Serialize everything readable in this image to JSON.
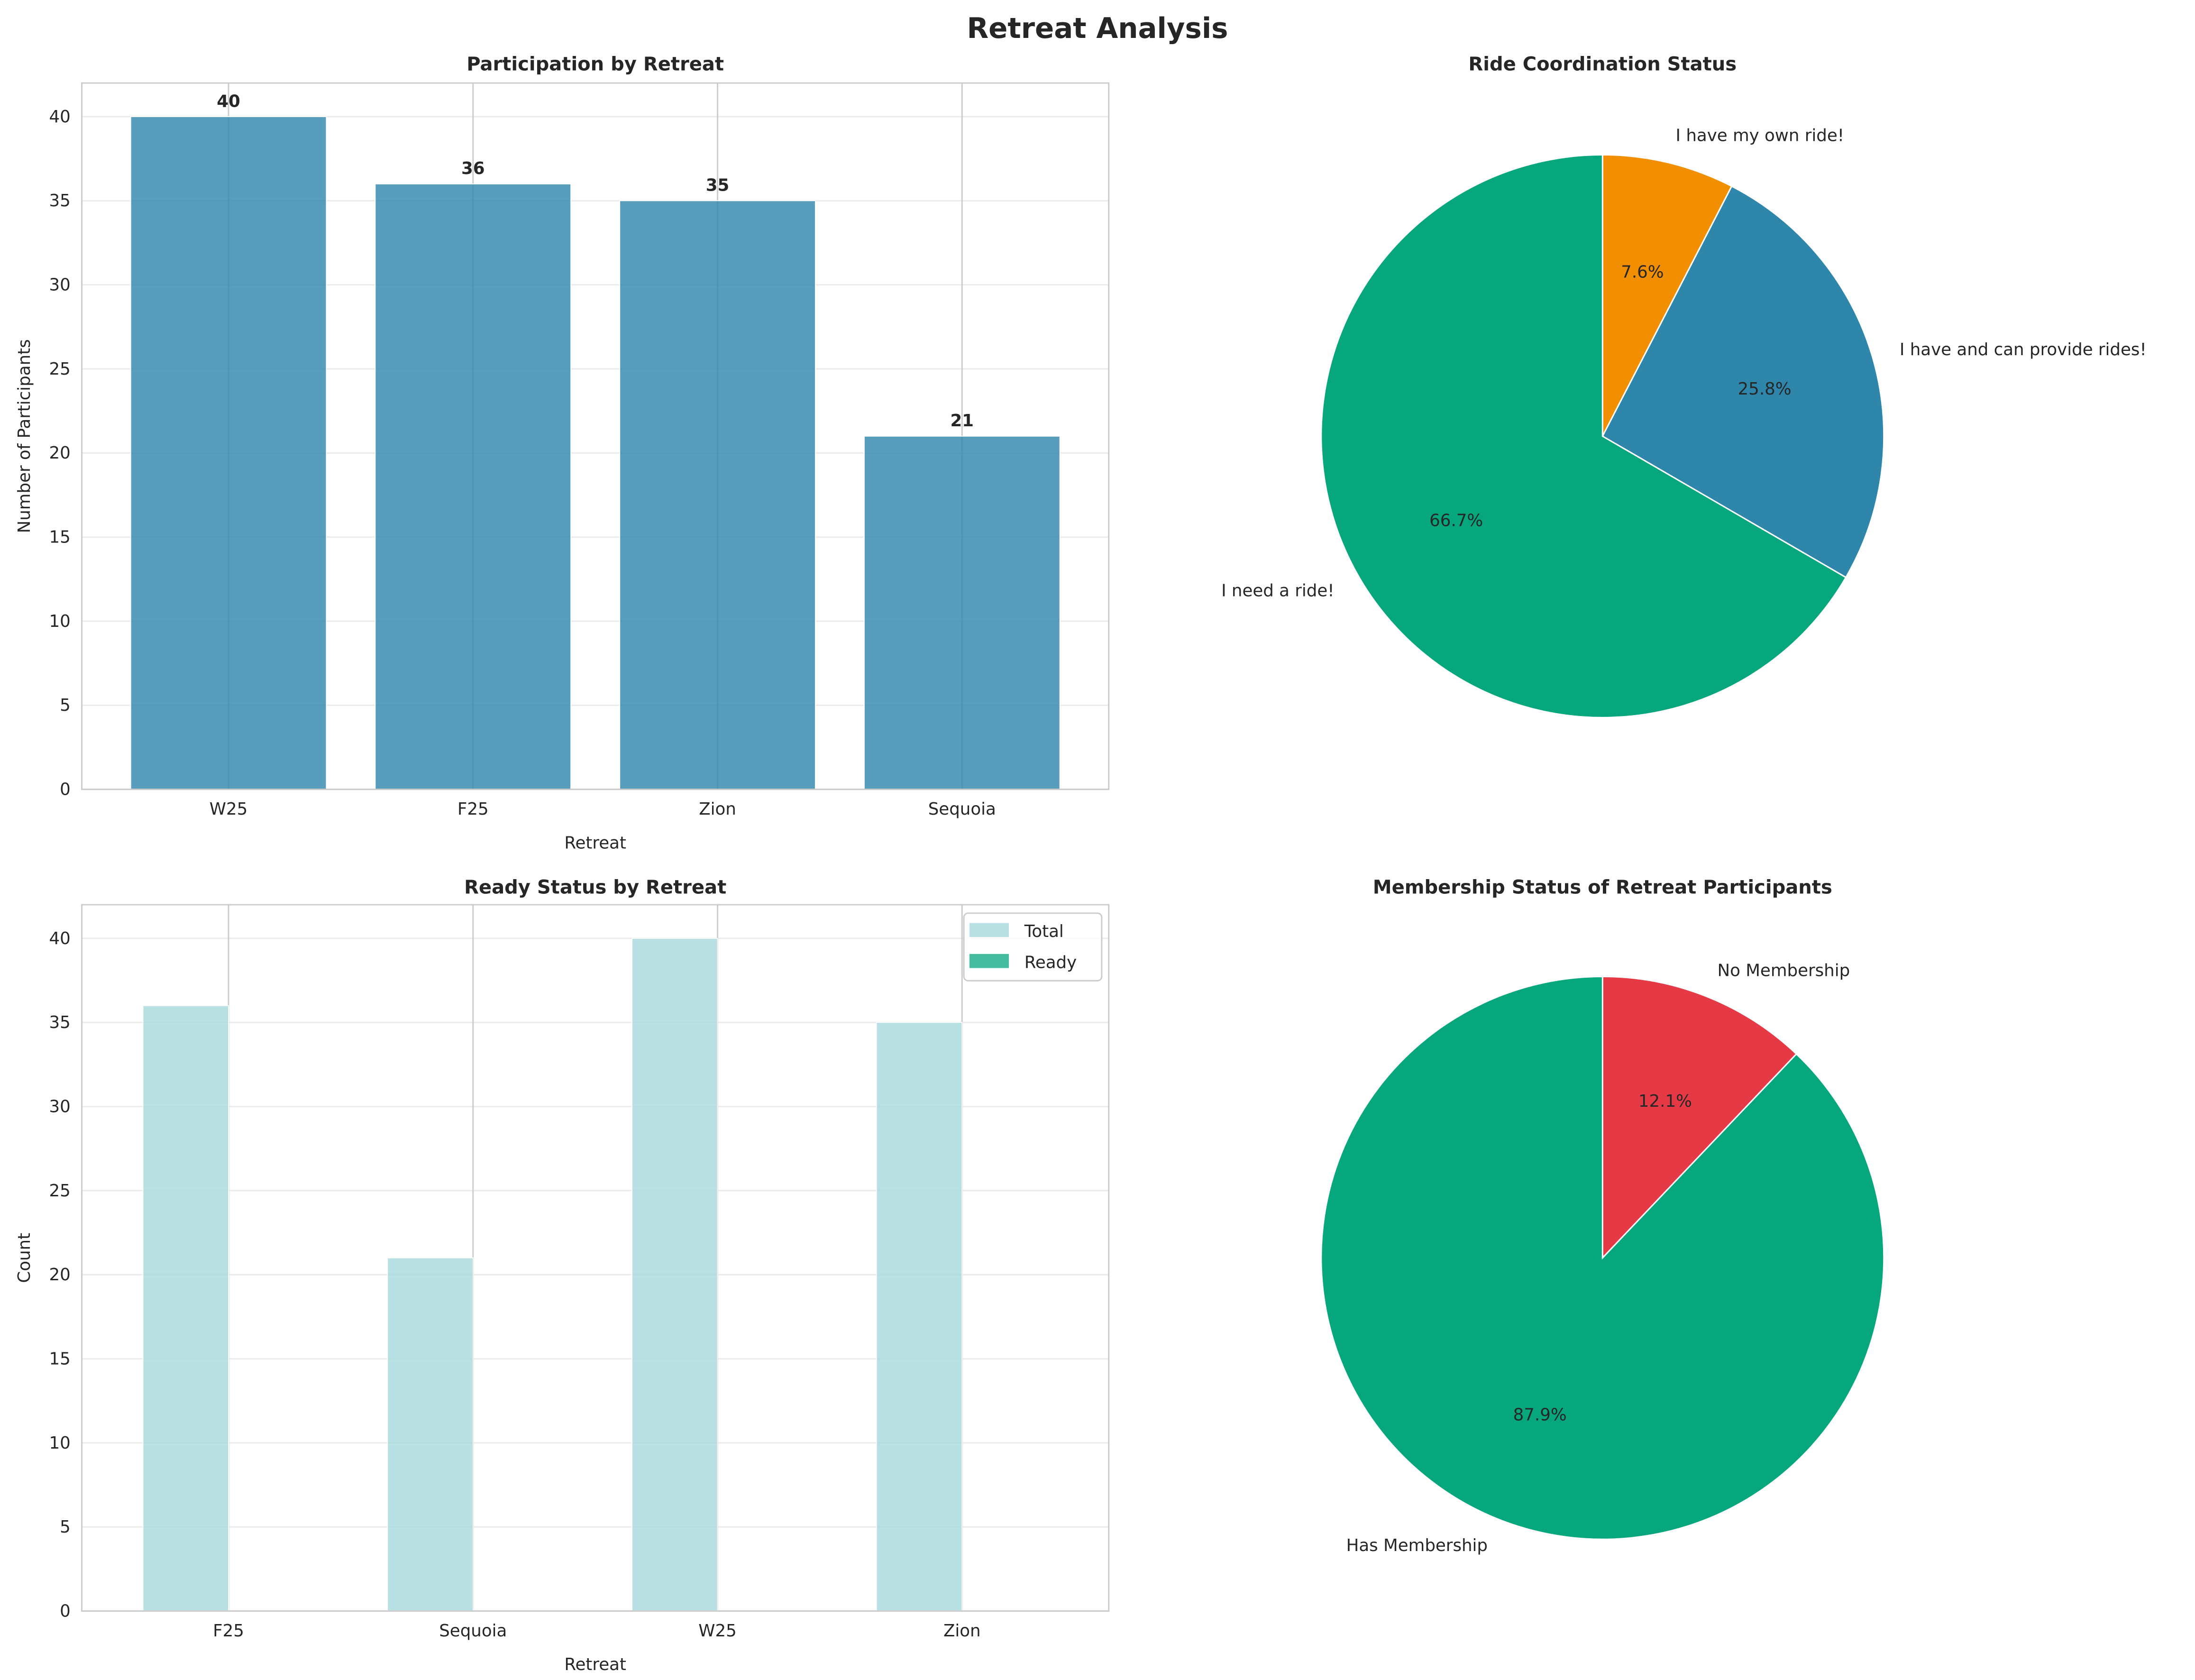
{
  "suptitle": "Retreat Analysis",
  "chart_data": [
    {
      "type": "bar",
      "title": "Participation by Retreat",
      "xlabel": "Retreat",
      "ylabel": "Number of Participants",
      "categories": [
        "W25",
        "F25",
        "Zion",
        "Sequoia"
      ],
      "values": [
        40,
        36,
        35,
        21
      ],
      "data_labels": [
        "40",
        "36",
        "35",
        "21"
      ],
      "ylim": [
        0,
        42
      ],
      "yticks": [
        0,
        5,
        10,
        15,
        20,
        25,
        30,
        35,
        40
      ],
      "grid": true,
      "color": "#2E86AB"
    },
    {
      "type": "pie",
      "title": "Ride Coordination Status",
      "slices": [
        {
          "label": "I have my own ride!",
          "value": 7.6,
          "pct_label": "7.6%",
          "color": "#F18F01"
        },
        {
          "label": "I have and can provide rides!",
          "value": 25.8,
          "pct_label": "25.8%",
          "color": "#2E86AB"
        },
        {
          "label": "I need a ride!",
          "value": 66.7,
          "pct_label": "66.7%",
          "color": "#06A77D"
        }
      ]
    },
    {
      "type": "bar",
      "title": "Ready Status by Retreat",
      "xlabel": "Retreat",
      "ylabel": "Count",
      "categories": [
        "F25",
        "Sequoia",
        "W25",
        "Zion"
      ],
      "series": [
        {
          "name": "Total",
          "values": [
            36,
            21,
            40,
            35
          ],
          "color": "#A8DADC"
        },
        {
          "name": "Ready",
          "values": [
            0,
            0,
            0,
            0
          ],
          "color": "#06A77D"
        }
      ],
      "ylim": [
        0,
        42
      ],
      "yticks": [
        0,
        5,
        10,
        15,
        20,
        25,
        30,
        35,
        40
      ],
      "grid": true,
      "legend": "top-right"
    },
    {
      "type": "pie",
      "title": "Membership Status of Retreat Participants",
      "slices": [
        {
          "label": "No Membership",
          "value": 12.1,
          "pct_label": "12.1%",
          "color": "#E63946"
        },
        {
          "label": "Has Membership",
          "value": 87.9,
          "pct_label": "87.9%",
          "color": "#06A77D"
        }
      ]
    }
  ]
}
